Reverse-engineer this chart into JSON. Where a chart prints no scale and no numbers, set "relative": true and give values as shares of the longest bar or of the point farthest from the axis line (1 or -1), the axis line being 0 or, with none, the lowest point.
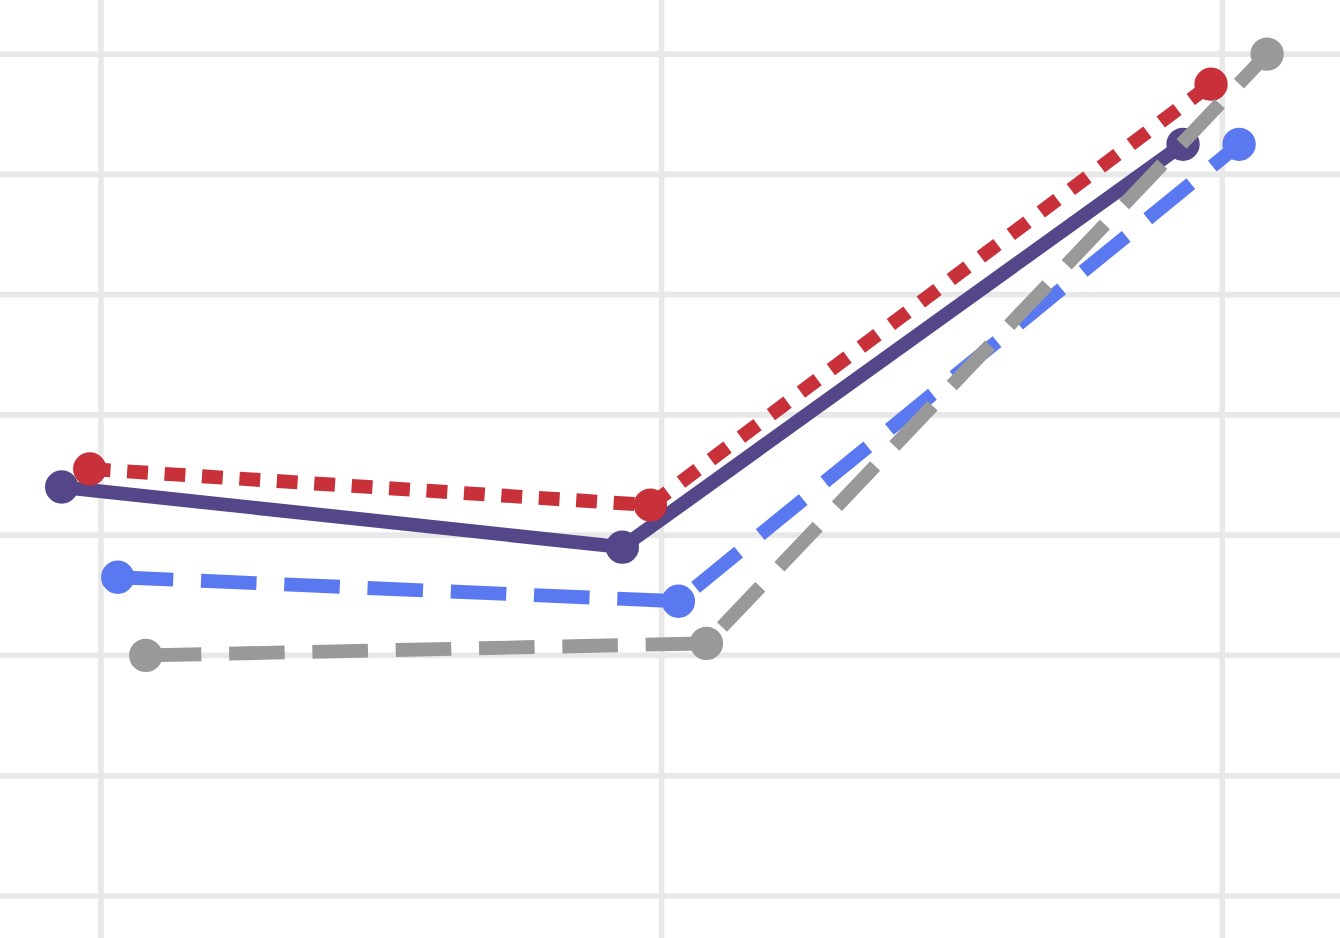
{
  "chart_data": {
    "type": "line",
    "relative": true,
    "categories": [
      null,
      null,
      null
    ],
    "grid": true,
    "marker": "circle",
    "series": [
      {
        "color": "#55468a",
        "line_style": "solid",
        "values": [
          0.28,
          0.18,
          0.85
        ]
      },
      {
        "color": "#c8313a",
        "line_style": "dotted",
        "values": [
          0.31,
          0.25,
          0.95
        ]
      },
      {
        "color": "#5a78f0",
        "line_style": "dashed",
        "values": [
          0.13,
          0.09,
          0.85
        ]
      },
      {
        "color": "#999999",
        "line_style": "dashed",
        "values": [
          0.0,
          0.02,
          1.0
        ]
      }
    ]
  }
}
